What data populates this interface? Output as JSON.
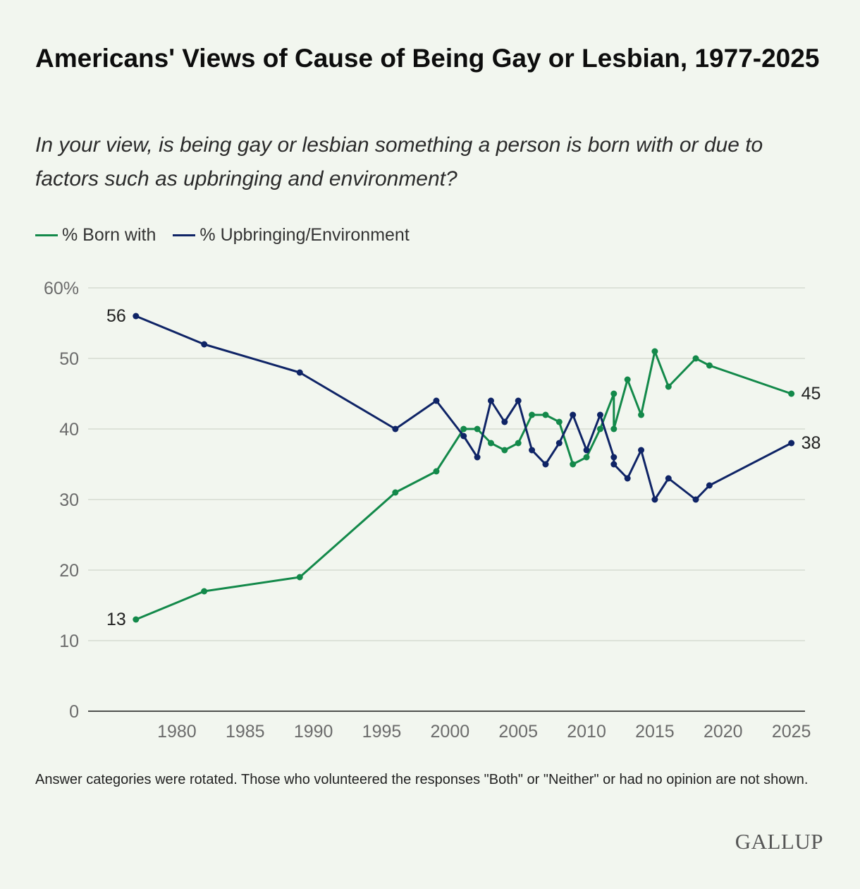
{
  "header": {
    "title": "Americans' Views of Cause of Being Gay or Lesbian, 1977-2025",
    "subtitle": "In your view, is being gay or lesbian something a person is born with or due to factors such as upbringing and environment?"
  },
  "footer": {
    "note": "Answer categories were rotated. Those who volunteered the responses \"Both\" or \"Neither\" or had no opinion are not shown.",
    "brand": "GALLUP"
  },
  "chart_data": {
    "type": "line",
    "title": "Americans' Views of Cause of Being Gay or Lesbian, 1977-2025",
    "xlabel": "",
    "ylabel": "",
    "xlim": [
      1973.5,
      2026
    ],
    "ylim": [
      0,
      60
    ],
    "x_ticks": [
      1980,
      1985,
      1990,
      1995,
      2000,
      2005,
      2010,
      2015,
      2020,
      2025
    ],
    "y_ticks": [
      0,
      10,
      20,
      30,
      40,
      50,
      60
    ],
    "y_tick_labels": [
      "0",
      "10",
      "20",
      "30",
      "40",
      "50",
      "60%"
    ],
    "grid": "horizontal",
    "legend": "top-left",
    "series": [
      {
        "name": "% Born with",
        "color": "#13894a",
        "points": [
          [
            1977,
            13
          ],
          [
            1982,
            17
          ],
          [
            1989,
            19
          ],
          [
            1996,
            31
          ],
          [
            1999,
            34
          ],
          [
            2001,
            40
          ],
          [
            2002,
            40
          ],
          [
            2003,
            38
          ],
          [
            2004,
            37
          ],
          [
            2005,
            38
          ],
          [
            2006,
            42
          ],
          [
            2007,
            42
          ],
          [
            2008,
            41
          ],
          [
            2009,
            35
          ],
          [
            2010,
            36
          ],
          [
            2011,
            40
          ],
          [
            2012,
            45
          ],
          [
            2012,
            40
          ],
          [
            2013,
            47
          ],
          [
            2014,
            42
          ],
          [
            2015,
            51
          ],
          [
            2016,
            46
          ],
          [
            2018,
            50
          ],
          [
            2019,
            49
          ],
          [
            2025,
            45
          ]
        ],
        "labels": [
          {
            "x": 1977,
            "y": 13,
            "text": "13",
            "side": "left"
          },
          {
            "x": 2025,
            "y": 45,
            "text": "45",
            "side": "right"
          }
        ]
      },
      {
        "name": "% Upbringing/Environment",
        "color": "#0f2466",
        "points": [
          [
            1977,
            56
          ],
          [
            1982,
            52
          ],
          [
            1989,
            48
          ],
          [
            1996,
            40
          ],
          [
            1999,
            44
          ],
          [
            2001,
            39
          ],
          [
            2002,
            36
          ],
          [
            2003,
            44
          ],
          [
            2004,
            41
          ],
          [
            2005,
            44
          ],
          [
            2006,
            37
          ],
          [
            2007,
            35
          ],
          [
            2008,
            38
          ],
          [
            2009,
            42
          ],
          [
            2010,
            37
          ],
          [
            2011,
            42
          ],
          [
            2012,
            36
          ],
          [
            2012,
            35
          ],
          [
            2013,
            33
          ],
          [
            2014,
            37
          ],
          [
            2015,
            30
          ],
          [
            2016,
            33
          ],
          [
            2018,
            30
          ],
          [
            2019,
            32
          ],
          [
            2025,
            38
          ]
        ],
        "labels": [
          {
            "x": 1977,
            "y": 56,
            "text": "56",
            "side": "left"
          },
          {
            "x": 2025,
            "y": 38,
            "text": "38",
            "side": "right"
          }
        ]
      }
    ]
  }
}
